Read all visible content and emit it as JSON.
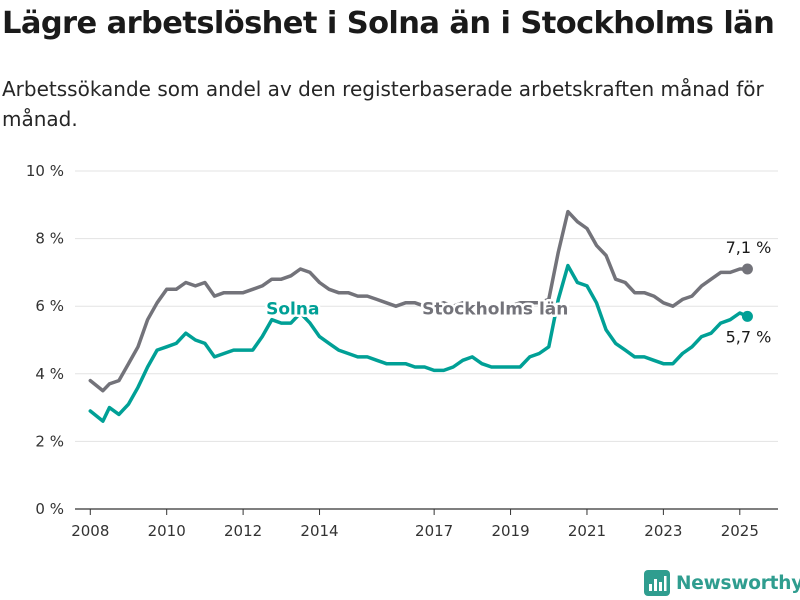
{
  "header": {
    "title": "Lägre arbetslöshet i Solna än i Stockholms län",
    "subtitle": "Arbetssökande som andel av den registerbaserade arbetskraften månad för månad."
  },
  "brand": {
    "name": "Newsworthy",
    "icon": "newsworthy-logo-icon"
  },
  "colors": {
    "solna": "#00a096",
    "stockholm": "#73737a",
    "grid": "#e3e3e3",
    "axis": "#333333"
  },
  "chart_data": {
    "type": "line",
    "title": "Lägre arbetslöshet i Solna än i Stockholms län",
    "subtitle": "Arbetssökande som andel av den registerbaserade arbetskraften månad för månad.",
    "xlabel": "",
    "ylabel": "",
    "x_unit": "year (decimal)",
    "xlim": [
      2007.6,
      2026.0
    ],
    "ylim": [
      0,
      10
    ],
    "yticks": [
      0,
      2,
      4,
      6,
      8,
      10
    ],
    "ytick_labels": [
      "0 %",
      "2 %",
      "4 %",
      "6 %",
      "8 %",
      "10 %"
    ],
    "xticks": [
      2008,
      2010,
      2012,
      2014,
      2017,
      2019,
      2021,
      2023,
      2025
    ],
    "xtick_labels": [
      "2008",
      "2010",
      "2012",
      "2014",
      "2017",
      "2019",
      "2021",
      "2023",
      "2025"
    ],
    "grid": true,
    "legend": "none (series labelled inline)",
    "series": [
      {
        "name": "Stockholms län",
        "color": "#73737a",
        "end_label": "7,1 %",
        "points": [
          [
            2008.0,
            3.8
          ],
          [
            2008.33,
            3.5
          ],
          [
            2008.5,
            3.7
          ],
          [
            2008.75,
            3.8
          ],
          [
            2009.0,
            4.3
          ],
          [
            2009.25,
            4.8
          ],
          [
            2009.5,
            5.6
          ],
          [
            2009.75,
            6.1
          ],
          [
            2010.0,
            6.5
          ],
          [
            2010.25,
            6.5
          ],
          [
            2010.5,
            6.7
          ],
          [
            2010.75,
            6.6
          ],
          [
            2011.0,
            6.7
          ],
          [
            2011.25,
            6.3
          ],
          [
            2011.5,
            6.4
          ],
          [
            2011.75,
            6.4
          ],
          [
            2012.0,
            6.4
          ],
          [
            2012.25,
            6.5
          ],
          [
            2012.5,
            6.6
          ],
          [
            2012.75,
            6.8
          ],
          [
            2013.0,
            6.8
          ],
          [
            2013.25,
            6.9
          ],
          [
            2013.5,
            7.1
          ],
          [
            2013.75,
            7.0
          ],
          [
            2014.0,
            6.7
          ],
          [
            2014.25,
            6.5
          ],
          [
            2014.5,
            6.4
          ],
          [
            2014.75,
            6.4
          ],
          [
            2015.0,
            6.3
          ],
          [
            2015.25,
            6.3
          ],
          [
            2015.5,
            6.2
          ],
          [
            2015.75,
            6.1
          ],
          [
            2016.0,
            6.0
          ],
          [
            2016.25,
            6.1
          ],
          [
            2016.5,
            6.1
          ],
          [
            2016.75,
            6.0
          ],
          [
            2017.0,
            6.0
          ],
          [
            2017.25,
            6.1
          ],
          [
            2017.5,
            6.0
          ],
          [
            2017.75,
            6.1
          ],
          [
            2018.0,
            6.0
          ],
          [
            2018.25,
            6.0
          ],
          [
            2018.5,
            6.0
          ],
          [
            2018.75,
            6.0
          ],
          [
            2019.0,
            6.0
          ],
          [
            2019.25,
            6.1
          ],
          [
            2019.5,
            6.1
          ],
          [
            2019.75,
            6.1
          ],
          [
            2020.0,
            6.2
          ],
          [
            2020.25,
            7.6
          ],
          [
            2020.5,
            8.8
          ],
          [
            2020.75,
            8.5
          ],
          [
            2021.0,
            8.3
          ],
          [
            2021.25,
            7.8
          ],
          [
            2021.5,
            7.5
          ],
          [
            2021.75,
            6.8
          ],
          [
            2022.0,
            6.7
          ],
          [
            2022.25,
            6.4
          ],
          [
            2022.5,
            6.4
          ],
          [
            2022.75,
            6.3
          ],
          [
            2023.0,
            6.1
          ],
          [
            2023.25,
            6.0
          ],
          [
            2023.5,
            6.2
          ],
          [
            2023.75,
            6.3
          ],
          [
            2024.0,
            6.6
          ],
          [
            2024.25,
            6.8
          ],
          [
            2024.5,
            7.0
          ],
          [
            2024.75,
            7.0
          ],
          [
            2025.0,
            7.1
          ],
          [
            2025.2,
            7.1
          ]
        ]
      },
      {
        "name": "Solna",
        "color": "#00a096",
        "end_label": "5,7 %",
        "points": [
          [
            2008.0,
            2.9
          ],
          [
            2008.33,
            2.6
          ],
          [
            2008.5,
            3.0
          ],
          [
            2008.75,
            2.8
          ],
          [
            2009.0,
            3.1
          ],
          [
            2009.25,
            3.6
          ],
          [
            2009.5,
            4.2
          ],
          [
            2009.75,
            4.7
          ],
          [
            2010.0,
            4.8
          ],
          [
            2010.25,
            4.9
          ],
          [
            2010.5,
            5.2
          ],
          [
            2010.75,
            5.0
          ],
          [
            2011.0,
            4.9
          ],
          [
            2011.25,
            4.5
          ],
          [
            2011.5,
            4.6
          ],
          [
            2011.75,
            4.7
          ],
          [
            2012.0,
            4.7
          ],
          [
            2012.25,
            4.7
          ],
          [
            2012.5,
            5.1
          ],
          [
            2012.75,
            5.6
          ],
          [
            2013.0,
            5.5
          ],
          [
            2013.25,
            5.5
          ],
          [
            2013.5,
            5.8
          ],
          [
            2013.75,
            5.5
          ],
          [
            2014.0,
            5.1
          ],
          [
            2014.25,
            4.9
          ],
          [
            2014.5,
            4.7
          ],
          [
            2014.75,
            4.6
          ],
          [
            2015.0,
            4.5
          ],
          [
            2015.25,
            4.5
          ],
          [
            2015.5,
            4.4
          ],
          [
            2015.75,
            4.3
          ],
          [
            2016.0,
            4.3
          ],
          [
            2016.25,
            4.3
          ],
          [
            2016.5,
            4.2
          ],
          [
            2016.75,
            4.2
          ],
          [
            2017.0,
            4.1
          ],
          [
            2017.25,
            4.1
          ],
          [
            2017.5,
            4.2
          ],
          [
            2017.75,
            4.4
          ],
          [
            2018.0,
            4.5
          ],
          [
            2018.25,
            4.3
          ],
          [
            2018.5,
            4.2
          ],
          [
            2018.75,
            4.2
          ],
          [
            2019.0,
            4.2
          ],
          [
            2019.25,
            4.2
          ],
          [
            2019.5,
            4.5
          ],
          [
            2019.75,
            4.6
          ],
          [
            2020.0,
            4.8
          ],
          [
            2020.25,
            6.2
          ],
          [
            2020.5,
            7.2
          ],
          [
            2020.75,
            6.7
          ],
          [
            2021.0,
            6.6
          ],
          [
            2021.25,
            6.1
          ],
          [
            2021.5,
            5.3
          ],
          [
            2021.75,
            4.9
          ],
          [
            2022.0,
            4.7
          ],
          [
            2022.25,
            4.5
          ],
          [
            2022.5,
            4.5
          ],
          [
            2022.75,
            4.4
          ],
          [
            2023.0,
            4.3
          ],
          [
            2023.25,
            4.3
          ],
          [
            2023.5,
            4.6
          ],
          [
            2023.75,
            4.8
          ],
          [
            2024.0,
            5.1
          ],
          [
            2024.25,
            5.2
          ],
          [
            2024.5,
            5.5
          ],
          [
            2024.75,
            5.6
          ],
          [
            2025.0,
            5.8
          ],
          [
            2025.2,
            5.7
          ]
        ]
      }
    ],
    "inline_labels": [
      "Solna",
      "Stockholms län"
    ]
  }
}
